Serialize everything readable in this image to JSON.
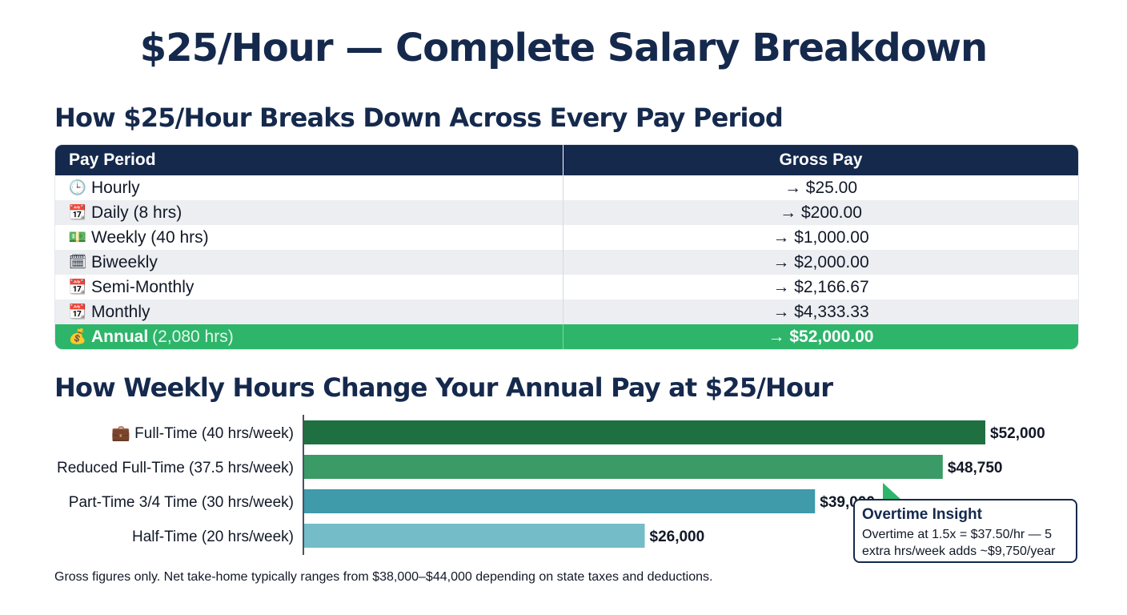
{
  "title": "$25/Hour — Complete Salary Breakdown",
  "table_section": {
    "title": "How $25/Hour Breaks Down Across Every Pay Period",
    "headers": [
      "Pay Period",
      "Gross Pay"
    ],
    "rows": [
      {
        "icon": "clock-icon",
        "glyph": "🕒",
        "label": "Hourly",
        "value": "→ $25.00"
      },
      {
        "icon": "calendar-icon",
        "glyph": "📆",
        "label": "Daily (8 hrs)",
        "value": "→ $200.00"
      },
      {
        "icon": "money-icon",
        "glyph": "💵",
        "label": "Weekly (40 hrs)",
        "value": "→ $1,000.00"
      },
      {
        "icon": "biweekly-calendar-icon",
        "glyph": "🗓",
        "label": "Biweekly",
        "value": "→ $2,000.00"
      },
      {
        "icon": "calendar-icon",
        "glyph": "📆",
        "label": "Semi-Monthly",
        "value": "→ $2,166.67"
      },
      {
        "icon": "calendar-icon",
        "glyph": "📆",
        "label": "Monthly",
        "value": "→ $4,333.33"
      }
    ],
    "highlight_row": {
      "icon": "money-bag-icon",
      "glyph": "💰",
      "label": "Annual",
      "label_detail": "(2,080 hrs)",
      "value": "→ $52,000.00"
    }
  },
  "chart_data": {
    "type": "bar",
    "orientation": "horizontal",
    "title": "How Weekly Hours Change Your Annual Pay at $25/Hour",
    "categories": [
      "💼 Full-Time (40 hrs/week)",
      "Reduced Full-Time (37.5 hrs/week)",
      "Part-Time 3/4 Time (30 hrs/week)",
      "Half-Time (20 hrs/week)"
    ],
    "values": [
      52000,
      48750,
      39000,
      26000
    ],
    "value_labels": [
      "$52,000",
      "$48,750",
      "$39,000",
      "$26,000"
    ],
    "colors": [
      "#1e7041",
      "#3a9b66",
      "#3f9aaa",
      "#74bcc7"
    ],
    "xlim": [
      0,
      60000
    ],
    "grid": false
  },
  "callout": {
    "title": "Overtime Insight",
    "lines": [
      "Overtime at 1.5x = $37.50/hr — 5",
      "extra hrs/week adds ~$9,750/year"
    ]
  },
  "footnote": "Gross figures only. Net take-home typically ranges from $38,000–$44,000 depending on state taxes and deductions."
}
